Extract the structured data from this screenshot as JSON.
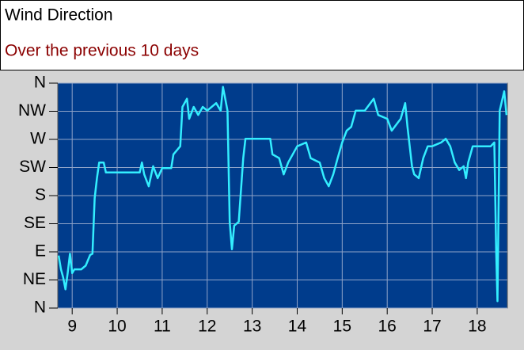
{
  "chart_data": {
    "type": "line",
    "title": "Wind Direction",
    "subtitle": "Over the previous 10 days",
    "x": [
      8.7,
      8.75,
      8.8,
      8.85,
      8.9,
      8.95,
      9.0,
      9.05,
      9.1,
      9.2,
      9.3,
      9.4,
      9.45,
      9.5,
      9.55,
      9.6,
      9.7,
      9.75,
      10.0,
      10.5,
      10.55,
      10.6,
      10.7,
      10.8,
      10.9,
      11.0,
      11.2,
      11.25,
      11.4,
      11.45,
      11.55,
      11.6,
      11.7,
      11.8,
      11.9,
      12.0,
      12.2,
      12.3,
      12.35,
      12.45,
      12.5,
      12.55,
      12.6,
      12.7,
      12.8,
      12.85,
      13.0,
      13.4,
      13.45,
      13.6,
      13.7,
      13.8,
      14.0,
      14.2,
      14.3,
      14.5,
      14.6,
      14.7,
      14.8,
      14.9,
      15.0,
      15.1,
      15.2,
      15.3,
      15.5,
      15.7,
      15.8,
      16.0,
      16.1,
      16.3,
      16.4,
      16.45,
      16.55,
      16.6,
      16.7,
      16.8,
      16.9,
      17.0,
      17.2,
      17.3,
      17.4,
      17.5,
      17.6,
      17.7,
      17.75,
      17.8,
      17.9,
      18.0,
      18.2,
      18.3,
      18.38,
      18.42,
      18.45,
      18.5,
      18.6,
      18.65
    ],
    "values": [
      84,
      62,
      49,
      30,
      56,
      87,
      56,
      62,
      62,
      62,
      68,
      85,
      87,
      176,
      208,
      233,
      233,
      217,
      217,
      217,
      233,
      214,
      195,
      227,
      208,
      224,
      224,
      246,
      259,
      322,
      335,
      303,
      322,
      309,
      322,
      316,
      328,
      316,
      354,
      316,
      138,
      94,
      132,
      138,
      240,
      271,
      271,
      271,
      246,
      240,
      214,
      233,
      259,
      265,
      240,
      233,
      208,
      195,
      214,
      240,
      265,
      284,
      290,
      316,
      316,
      335,
      309,
      303,
      284,
      303,
      328,
      290,
      227,
      214,
      208,
      240,
      259,
      259,
      265,
      271,
      259,
      233,
      221,
      227,
      208,
      233,
      259,
      259,
      259,
      259,
      265,
      94,
      11,
      316,
      347,
      309
    ],
    "color": "#33eeff",
    "xlim": [
      8.68,
      18.67
    ],
    "xticks": [
      9,
      10,
      11,
      12,
      13,
      14,
      15,
      16,
      17,
      18
    ],
    "ylim": [
      0,
      360
    ],
    "yticks": [
      {
        "value": 0,
        "label": "N"
      },
      {
        "value": 45,
        "label": "NE"
      },
      {
        "value": 90,
        "label": "E"
      },
      {
        "value": 135,
        "label": "SE"
      },
      {
        "value": 180,
        "label": "S"
      },
      {
        "value": 225,
        "label": "SW"
      },
      {
        "value": 270,
        "label": "W"
      },
      {
        "value": 315,
        "label": "NW"
      },
      {
        "value": 360,
        "label": "N"
      }
    ],
    "grid": true
  }
}
